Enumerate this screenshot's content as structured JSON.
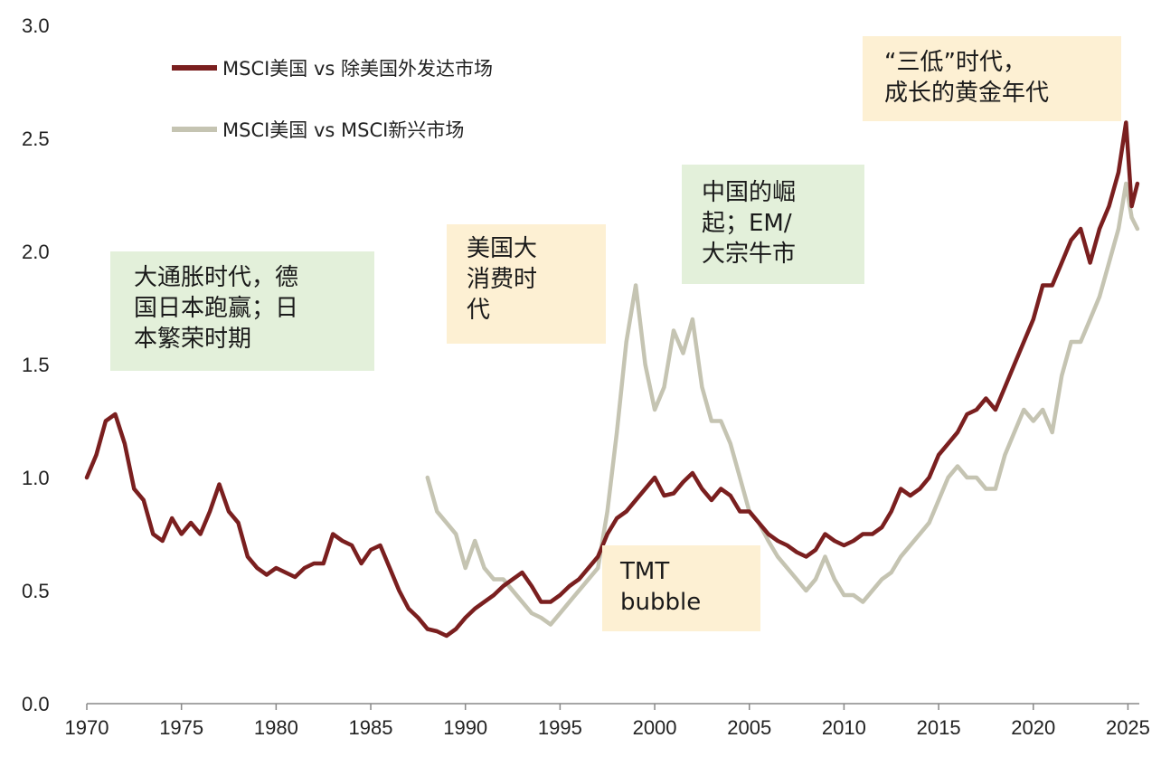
{
  "chart_data": {
    "type": "line",
    "title": "",
    "xlabel": "",
    "ylabel": "",
    "xlim": [
      1970,
      2025.6
    ],
    "ylim": [
      0,
      3
    ],
    "x_ticks": [
      "1970",
      "1975",
      "1980",
      "1985",
      "1990",
      "1995",
      "2000",
      "2005",
      "2010",
      "2015",
      "2020",
      "2025"
    ],
    "y_ticks": [
      "0.0",
      "0.5",
      "1.0",
      "1.5",
      "2.0",
      "2.5",
      "3.0"
    ],
    "grid": false,
    "legend_position": "top-left",
    "series": [
      {
        "name": "MSCI美国 vs 除美国外发达市场",
        "color": "#7a1f1f",
        "points": [
          [
            1970.0,
            1.0
          ],
          [
            1970.5,
            1.1
          ],
          [
            1971.0,
            1.25
          ],
          [
            1971.5,
            1.28
          ],
          [
            1972.0,
            1.15
          ],
          [
            1972.5,
            0.95
          ],
          [
            1973.0,
            0.9
          ],
          [
            1973.5,
            0.75
          ],
          [
            1974.0,
            0.72
          ],
          [
            1974.5,
            0.82
          ],
          [
            1975.0,
            0.75
          ],
          [
            1975.5,
            0.8
          ],
          [
            1976.0,
            0.75
          ],
          [
            1976.5,
            0.85
          ],
          [
            1977.0,
            0.97
          ],
          [
            1977.5,
            0.85
          ],
          [
            1978.0,
            0.8
          ],
          [
            1978.5,
            0.65
          ],
          [
            1979.0,
            0.6
          ],
          [
            1979.5,
            0.57
          ],
          [
            1980.0,
            0.6
          ],
          [
            1980.5,
            0.58
          ],
          [
            1981.0,
            0.56
          ],
          [
            1981.5,
            0.6
          ],
          [
            1982.0,
            0.62
          ],
          [
            1982.5,
            0.62
          ],
          [
            1983.0,
            0.75
          ],
          [
            1983.5,
            0.72
          ],
          [
            1984.0,
            0.7
          ],
          [
            1984.5,
            0.62
          ],
          [
            1985.0,
            0.68
          ],
          [
            1985.5,
            0.7
          ],
          [
            1986.0,
            0.6
          ],
          [
            1986.5,
            0.5
          ],
          [
            1987.0,
            0.42
          ],
          [
            1987.5,
            0.38
          ],
          [
            1988.0,
            0.33
          ],
          [
            1988.5,
            0.32
          ],
          [
            1989.0,
            0.3
          ],
          [
            1989.5,
            0.33
          ],
          [
            1990.0,
            0.38
          ],
          [
            1990.5,
            0.42
          ],
          [
            1991.0,
            0.45
          ],
          [
            1991.5,
            0.48
          ],
          [
            1992.0,
            0.52
          ],
          [
            1992.5,
            0.55
          ],
          [
            1993.0,
            0.58
          ],
          [
            1993.5,
            0.52
          ],
          [
            1994.0,
            0.45
          ],
          [
            1994.5,
            0.45
          ],
          [
            1995.0,
            0.48
          ],
          [
            1995.5,
            0.52
          ],
          [
            1996.0,
            0.55
          ],
          [
            1996.5,
            0.6
          ],
          [
            1997.0,
            0.65
          ],
          [
            1997.5,
            0.75
          ],
          [
            1998.0,
            0.82
          ],
          [
            1998.5,
            0.85
          ],
          [
            1999.0,
            0.9
          ],
          [
            1999.5,
            0.95
          ],
          [
            2000.0,
            1.0
          ],
          [
            2000.5,
            0.92
          ],
          [
            2001.0,
            0.93
          ],
          [
            2001.5,
            0.98
          ],
          [
            2002.0,
            1.02
          ],
          [
            2002.5,
            0.95
          ],
          [
            2003.0,
            0.9
          ],
          [
            2003.5,
            0.95
          ],
          [
            2004.0,
            0.92
          ],
          [
            2004.5,
            0.85
          ],
          [
            2005.0,
            0.85
          ],
          [
            2005.5,
            0.8
          ],
          [
            2006.0,
            0.75
          ],
          [
            2006.5,
            0.72
          ],
          [
            2007.0,
            0.7
          ],
          [
            2007.5,
            0.67
          ],
          [
            2008.0,
            0.65
          ],
          [
            2008.5,
            0.68
          ],
          [
            2009.0,
            0.75
          ],
          [
            2009.5,
            0.72
          ],
          [
            2010.0,
            0.7
          ],
          [
            2010.5,
            0.72
          ],
          [
            2011.0,
            0.75
          ],
          [
            2011.5,
            0.75
          ],
          [
            2012.0,
            0.78
          ],
          [
            2012.5,
            0.85
          ],
          [
            2013.0,
            0.95
          ],
          [
            2013.5,
            0.92
          ],
          [
            2014.0,
            0.95
          ],
          [
            2014.5,
            1.0
          ],
          [
            2015.0,
            1.1
          ],
          [
            2015.5,
            1.15
          ],
          [
            2016.0,
            1.2
          ],
          [
            2016.5,
            1.28
          ],
          [
            2017.0,
            1.3
          ],
          [
            2017.5,
            1.35
          ],
          [
            2018.0,
            1.3
          ],
          [
            2018.5,
            1.4
          ],
          [
            2019.0,
            1.5
          ],
          [
            2019.5,
            1.6
          ],
          [
            2020.0,
            1.7
          ],
          [
            2020.5,
            1.85
          ],
          [
            2021.0,
            1.85
          ],
          [
            2021.5,
            1.95
          ],
          [
            2022.0,
            2.05
          ],
          [
            2022.5,
            2.1
          ],
          [
            2023.0,
            1.95
          ],
          [
            2023.5,
            2.1
          ],
          [
            2024.0,
            2.2
          ],
          [
            2024.5,
            2.35
          ],
          [
            2024.9,
            2.57
          ],
          [
            2025.2,
            2.2
          ],
          [
            2025.5,
            2.3
          ]
        ]
      },
      {
        "name": "MSCI美国 vs MSCI新兴市场",
        "color": "#c5c4b2",
        "points": [
          [
            1988.0,
            1.0
          ],
          [
            1988.5,
            0.85
          ],
          [
            1989.0,
            0.8
          ],
          [
            1989.5,
            0.75
          ],
          [
            1990.0,
            0.6
          ],
          [
            1990.5,
            0.72
          ],
          [
            1991.0,
            0.6
          ],
          [
            1991.5,
            0.55
          ],
          [
            1992.0,
            0.55
          ],
          [
            1992.5,
            0.5
          ],
          [
            1993.0,
            0.45
          ],
          [
            1993.5,
            0.4
          ],
          [
            1994.0,
            0.38
          ],
          [
            1994.5,
            0.35
          ],
          [
            1995.0,
            0.4
          ],
          [
            1995.5,
            0.45
          ],
          [
            1996.0,
            0.5
          ],
          [
            1996.5,
            0.55
          ],
          [
            1997.0,
            0.6
          ],
          [
            1997.5,
            0.85
          ],
          [
            1998.0,
            1.2
          ],
          [
            1998.5,
            1.6
          ],
          [
            1999.0,
            1.85
          ],
          [
            1999.5,
            1.5
          ],
          [
            2000.0,
            1.3
          ],
          [
            2000.5,
            1.4
          ],
          [
            2001.0,
            1.65
          ],
          [
            2001.5,
            1.55
          ],
          [
            2002.0,
            1.7
          ],
          [
            2002.5,
            1.4
          ],
          [
            2003.0,
            1.25
          ],
          [
            2003.5,
            1.25
          ],
          [
            2004.0,
            1.15
          ],
          [
            2004.5,
            1.0
          ],
          [
            2005.0,
            0.85
          ],
          [
            2005.5,
            0.8
          ],
          [
            2006.0,
            0.72
          ],
          [
            2006.5,
            0.65
          ],
          [
            2007.0,
            0.6
          ],
          [
            2007.5,
            0.55
          ],
          [
            2008.0,
            0.5
          ],
          [
            2008.5,
            0.55
          ],
          [
            2009.0,
            0.65
          ],
          [
            2009.5,
            0.55
          ],
          [
            2010.0,
            0.48
          ],
          [
            2010.5,
            0.48
          ],
          [
            2011.0,
            0.45
          ],
          [
            2011.5,
            0.5
          ],
          [
            2012.0,
            0.55
          ],
          [
            2012.5,
            0.58
          ],
          [
            2013.0,
            0.65
          ],
          [
            2013.5,
            0.7
          ],
          [
            2014.0,
            0.75
          ],
          [
            2014.5,
            0.8
          ],
          [
            2015.0,
            0.9
          ],
          [
            2015.5,
            1.0
          ],
          [
            2016.0,
            1.05
          ],
          [
            2016.5,
            1.0
          ],
          [
            2017.0,
            1.0
          ],
          [
            2017.5,
            0.95
          ],
          [
            2018.0,
            0.95
          ],
          [
            2018.5,
            1.1
          ],
          [
            2019.0,
            1.2
          ],
          [
            2019.5,
            1.3
          ],
          [
            2020.0,
            1.25
          ],
          [
            2020.5,
            1.3
          ],
          [
            2021.0,
            1.2
          ],
          [
            2021.5,
            1.45
          ],
          [
            2022.0,
            1.6
          ],
          [
            2022.5,
            1.6
          ],
          [
            2023.0,
            1.7
          ],
          [
            2023.5,
            1.8
          ],
          [
            2024.0,
            1.95
          ],
          [
            2024.5,
            2.1
          ],
          [
            2024.9,
            2.3
          ],
          [
            2025.2,
            2.15
          ],
          [
            2025.5,
            2.1
          ]
        ]
      }
    ],
    "annotations": [
      {
        "text": "大通胀时代，德\n国日本跑赢；日\n本繁荣时期",
        "background": "#e3f0da"
      },
      {
        "text": "美国大\n消费时\n代",
        "background": "#fdf0d3"
      },
      {
        "text": "中国的崛\n起；EM/\n大宗牛市",
        "background": "#e3f0da"
      },
      {
        "text": "TMT\nbubble",
        "background": "#fdf0d3"
      },
      {
        "text": "“三低”时代，\n成长的黄金年代",
        "background": "#fdf0d3"
      }
    ]
  }
}
